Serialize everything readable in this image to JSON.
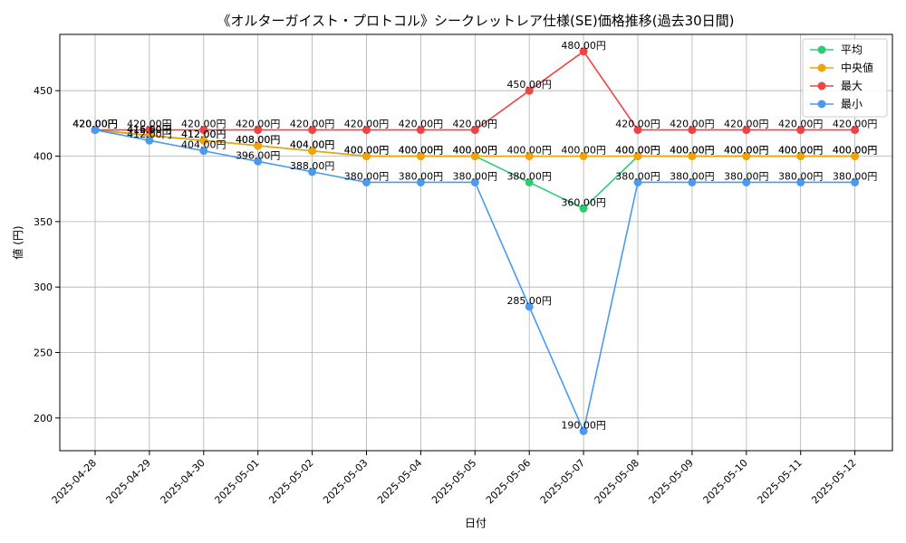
{
  "chart_data": {
    "type": "line",
    "title": "《オルターガイスト・プロトコル》シークレットレア仕様(SE)価格推移(過去30日間)",
    "xlabel": "日付",
    "ylabel": "値 (円)",
    "ylim": [
      175,
      493
    ],
    "yticks": [
      200,
      250,
      300,
      350,
      400,
      450
    ],
    "grid": true,
    "legend_position": "top-right",
    "label_suffix": "円",
    "categories": [
      "2025-04-28",
      "2025-04-29",
      "2025-04-30",
      "2025-05-01",
      "2025-05-02",
      "2025-05-03",
      "2025-05-04",
      "2025-05-05",
      "2025-05-06",
      "2025-05-07",
      "2025-05-08",
      "2025-05-09",
      "2025-05-10",
      "2025-05-11",
      "2025-05-12"
    ],
    "series": [
      {
        "name": "平均",
        "color": "#2ecc71",
        "values": [
          420,
          415.6,
          412,
          408,
          404,
          400,
          400,
          400,
          380,
          360,
          400,
          400,
          400,
          400,
          400
        ]
      },
      {
        "name": "中央値",
        "color": "#f0a30a",
        "values": [
          420,
          416,
          412,
          408,
          404,
          400,
          400,
          400,
          400,
          400,
          400,
          400,
          400,
          400,
          400
        ]
      },
      {
        "name": "最大",
        "color": "#ef4444",
        "values": [
          420,
          420,
          420,
          420,
          420,
          420,
          420,
          420,
          450,
          480,
          420,
          420,
          420,
          420,
          420
        ]
      },
      {
        "name": "最小",
        "color": "#4a9af0",
        "values": [
          420,
          412,
          404,
          396,
          388,
          380,
          380,
          380,
          285,
          190,
          380,
          380,
          380,
          380,
          380
        ]
      }
    ]
  }
}
